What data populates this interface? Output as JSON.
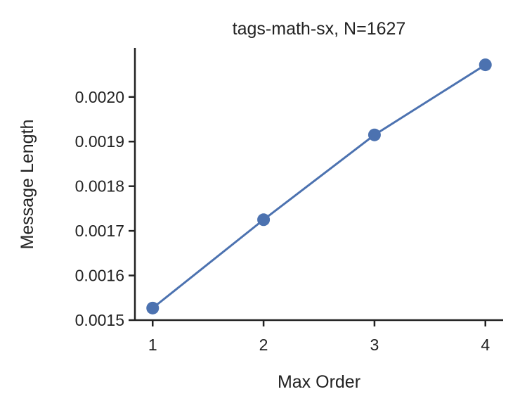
{
  "chart_data": {
    "type": "line",
    "title": "tags-math-sx, N=1627",
    "xlabel": "Max Order",
    "ylabel": "Message Length",
    "x": [
      1,
      2,
      3,
      4
    ],
    "series": [
      {
        "values": [
          0.001527,
          0.001725,
          0.001915,
          0.002072
        ],
        "color": "#4c72b0",
        "marker": "circle"
      }
    ],
    "xticks": [
      1,
      2,
      3,
      4
    ],
    "xtick_labels": [
      "1",
      "2",
      "3",
      "4"
    ],
    "yticks": [
      0.0015,
      0.0016,
      0.0017,
      0.0018,
      0.0019,
      0.002
    ],
    "ytick_labels": [
      "0.0015",
      "0.0016",
      "0.0017",
      "0.0018",
      "0.0019",
      "0.0020"
    ],
    "xlim": [
      0.84,
      4.16
    ],
    "ylim": [
      0.0015,
      0.00211
    ],
    "grid": false,
    "legend": false
  }
}
